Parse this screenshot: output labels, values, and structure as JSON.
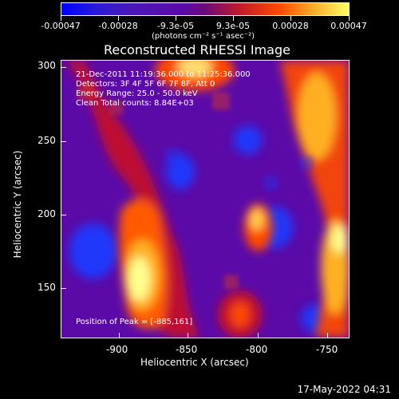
{
  "colorbar": {
    "ticks": [
      "-0.00047",
      "-0.00028",
      "-9.3e-05",
      "9.3e-05",
      "0.00028",
      "0.00047"
    ],
    "unit_label": "(photons cm⁻² s⁻¹ asec⁻²)"
  },
  "title": "Reconstructed RHESSI Image",
  "overlay": {
    "time": "21-Dec-2011 11:19:36.000 to 11:25:36.000",
    "detectors": "Detectors: 3F 4F 5F 6F 7F 8F, Att 0",
    "energy": "Energy Range: 25.0 - 50.0 keV",
    "clean": "Clean    Total counts: 8.84E+03",
    "peak": "Position of Peak = [-885,161]"
  },
  "axes": {
    "x": {
      "label": "Heliocentric X (arcsec)",
      "ticks": [
        "-900",
        "-850",
        "-800",
        "-750"
      ]
    },
    "y": {
      "label": "Heliocentric Y (arcsec)",
      "ticks": [
        "300",
        "250",
        "200",
        "150"
      ]
    }
  },
  "footer": {
    "timestamp": "17-May-2022 04:31"
  },
  "colors": {
    "low": "#1f3bff",
    "mid": "#5b0aa8",
    "high": "#ff4a00",
    "peak": "#ffffb0"
  }
}
